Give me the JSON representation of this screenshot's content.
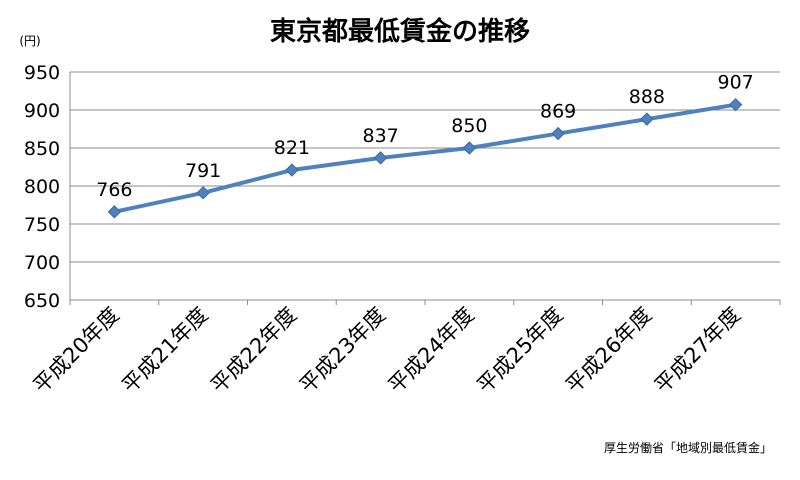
{
  "chart_data": {
    "type": "line",
    "title": "東京都最低賃金の推移",
    "unit_label": "(円)",
    "categories": [
      "平成20年度",
      "平成21年度",
      "平成22年度",
      "平成23年度",
      "平成24年度",
      "平成25年度",
      "平成26年度",
      "平成27年度"
    ],
    "series": [
      {
        "values": [
          766,
          791,
          821,
          837,
          850,
          869,
          888,
          907
        ]
      }
    ],
    "ylim": [
      650,
      950
    ],
    "yticks": [
      650,
      700,
      750,
      800,
      850,
      900,
      950
    ],
    "grid": true,
    "legend": "none",
    "source": "厚生労働省「地域別最低賃金」",
    "line_color": "#4f81bd"
  }
}
